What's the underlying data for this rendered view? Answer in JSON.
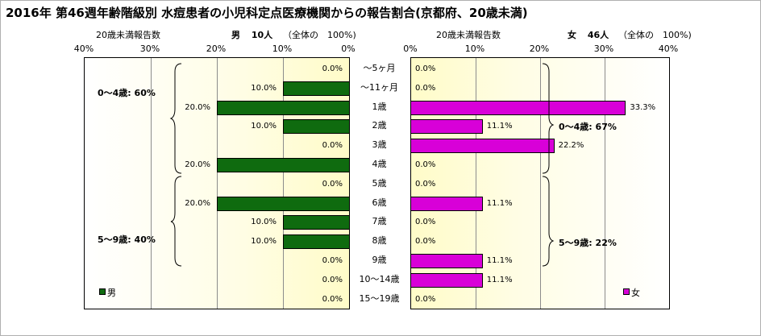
{
  "title": "2016年 第46週年齢階級別 水痘患者の小児科定点医療機関からの報告割合(京都府、20歳未満)",
  "left_header": {
    "axis_label": "20歳未満報告数",
    "sex": "男",
    "count": "10人",
    "total": "（全体の　100%)"
  },
  "right_header": {
    "axis_label": "20歳未満報告数",
    "sex": "女",
    "count": "46人",
    "total": "（全体の　100%)"
  },
  "ticks_left": [
    "40%",
    "30%",
    "20%",
    "10%",
    "0%"
  ],
  "ticks_right": [
    "0%",
    "10%",
    "20%",
    "30%",
    "40%"
  ],
  "groups_left": [
    {
      "label": "0～4歳: 60%"
    },
    {
      "label": "5～9歳: 40%"
    }
  ],
  "groups_right": [
    {
      "label": "0～4歳: 67%"
    },
    {
      "label": "5～9歳: 22%"
    }
  ],
  "legend": {
    "male": "男",
    "female": "女"
  },
  "colors": {
    "male": "#0f6b0f",
    "female": "#d800d8"
  },
  "chart_data": {
    "type": "bar",
    "orientation": "horizontal",
    "categories": [
      "～5ヶ月",
      "～11ヶ月",
      "1歳",
      "2歳",
      "3歳",
      "4歳",
      "5歳",
      "6歳",
      "7歳",
      "8歳",
      "9歳",
      "10～14歳",
      "15～19歳"
    ],
    "xlim": [
      0,
      40
    ],
    "grid": true,
    "series": [
      {
        "name": "男",
        "values": [
          0.0,
          10.0,
          20.0,
          10.0,
          0.0,
          20.0,
          0.0,
          20.0,
          10.0,
          10.0,
          0.0,
          0.0,
          0.0
        ],
        "labels": [
          "0.0%",
          "10.0%",
          "20.0%",
          "10.0%",
          "0.0%",
          "20.0%",
          "0.0%",
          "20.0%",
          "10.0%",
          "10.0%",
          "0.0%",
          "0.0%",
          "0.0%"
        ]
      },
      {
        "name": "女",
        "values": [
          0.0,
          0.0,
          33.3,
          11.1,
          22.2,
          0.0,
          0.0,
          11.1,
          0.0,
          0.0,
          11.1,
          11.1,
          0.0
        ],
        "labels": [
          "0.0%",
          "0.0%",
          "33.3%",
          "11.1%",
          "22.2%",
          "0.0%",
          "0.0%",
          "11.1%",
          "0.0%",
          "0.0%",
          "11.1%",
          "11.1%",
          "0.0%"
        ]
      }
    ]
  }
}
